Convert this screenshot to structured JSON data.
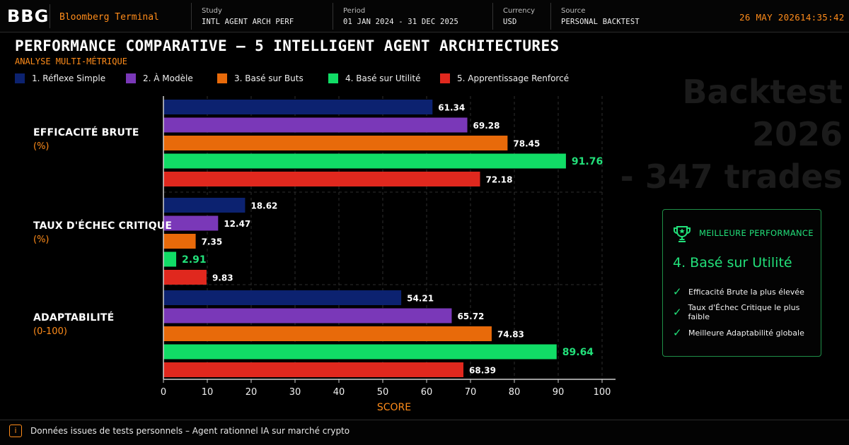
{
  "header": {
    "logo": "BBG",
    "brand": "Bloomberg Terminal",
    "fields": [
      {
        "label": "Study",
        "value": "INTL AGENT ARCH PERF"
      },
      {
        "label": "Period",
        "value": "01 JAN 2024 - 31 DEC 2025"
      },
      {
        "label": "Currency",
        "value": "USD"
      },
      {
        "label": "Source",
        "value": "PERSONAL BACKTEST"
      }
    ],
    "date": "26 MAY 2026",
    "time": "14:35:42"
  },
  "watermark": [
    "Backtest 2026",
    "- 347 trades"
  ],
  "best": {
    "heading": "MEILLEURE PERFORMANCE",
    "winner": "4. Basé sur Utilité",
    "points": [
      "Efficacité Brute la plus élevée",
      "Taux d'Échec Critique le plus faible",
      "Meilleure Adaptabilité globale"
    ],
    "icon": "trophy-icon"
  },
  "footer": {
    "icon": "info-icon",
    "icon_glyph": "i",
    "text": "Données issues de tests personnels – Agent rationnel IA sur marché crypto"
  },
  "colors": {
    "accent": "#ff8c1a",
    "highlight": "#22e07a",
    "series": [
      "#0c2270",
      "#7a38b8",
      "#e86a0a",
      "#11dc66",
      "#e0281e"
    ]
  },
  "chart_data": {
    "type": "bar",
    "orientation": "horizontal",
    "title": "PERFORMANCE COMPARATIVE – 5 INTELLIGENT AGENT ARCHITECTURES",
    "subtitle": "ANALYSE MULTI-MÉTRIQUE",
    "xlabel": "SCORE",
    "xlim": [
      0,
      100
    ],
    "xticks": [
      0,
      10,
      20,
      30,
      40,
      50,
      60,
      70,
      80,
      90,
      100
    ],
    "grid": "vertical dashed",
    "legend_position": "top",
    "highlight_series": 3,
    "categories": [
      {
        "name": "EFFICACITÉ BRUTE",
        "unit": "(%)"
      },
      {
        "name": "TAUX D'ÉCHEC CRITIQUE",
        "unit": "(%)"
      },
      {
        "name": "ADAPTABILITÉ",
        "unit": "(0-100)"
      }
    ],
    "series": [
      {
        "name": "1. Réflexe Simple",
        "values": [
          61.34,
          18.62,
          54.21
        ]
      },
      {
        "name": "2. À Modèle",
        "values": [
          69.28,
          12.47,
          65.72
        ]
      },
      {
        "name": "3. Basé sur Buts",
        "values": [
          78.45,
          7.35,
          74.83
        ]
      },
      {
        "name": "4. Basé sur Utilité",
        "values": [
          91.76,
          2.91,
          89.64
        ]
      },
      {
        "name": "5. Apprentissage Renforcé",
        "values": [
          72.18,
          9.83,
          68.39
        ]
      }
    ]
  }
}
